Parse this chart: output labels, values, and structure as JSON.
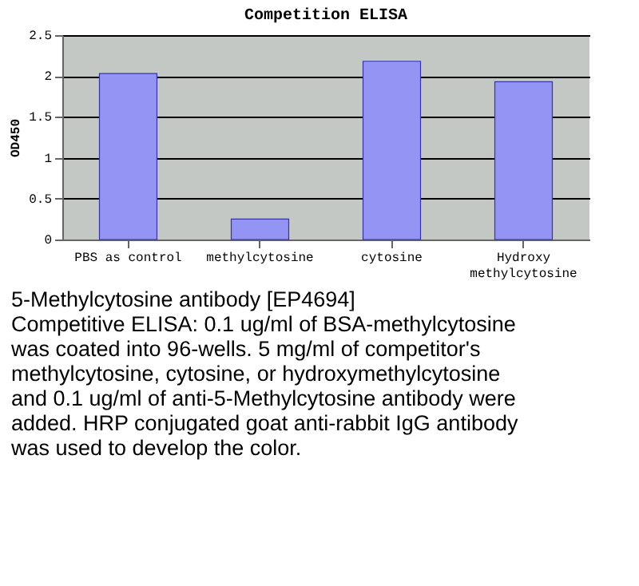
{
  "chart_data": {
    "type": "bar",
    "title": "Competition ELISA",
    "ylabel": "OD450",
    "categories": [
      "PBS as control",
      "methylcytosine",
      "cytosine",
      "Hydroxy methylcytosine"
    ],
    "values": [
      2.03,
      0.25,
      2.18,
      1.93
    ],
    "color": "#9494f4",
    "ylim": [
      0,
      2.5
    ],
    "yticks": [
      0,
      0.5,
      1,
      1.5,
      2,
      2.5
    ],
    "grid": "y",
    "annotations": [
      "5-Methylcytosine antibody [EP4694]",
      "Competitive ELISA: 0.1 ug/ml of BSA-methylcytosine was coated into 96-wells. 5 mg/ml of competitor's methylcytosine, cytosine, or hydroxymethylcytosine and 0.1 ug/ml of anti-5-Methylcytosine antibody were added. HRP conjugated goat anti-rabbit IgG antibody was used to develop the color."
    ]
  }
}
